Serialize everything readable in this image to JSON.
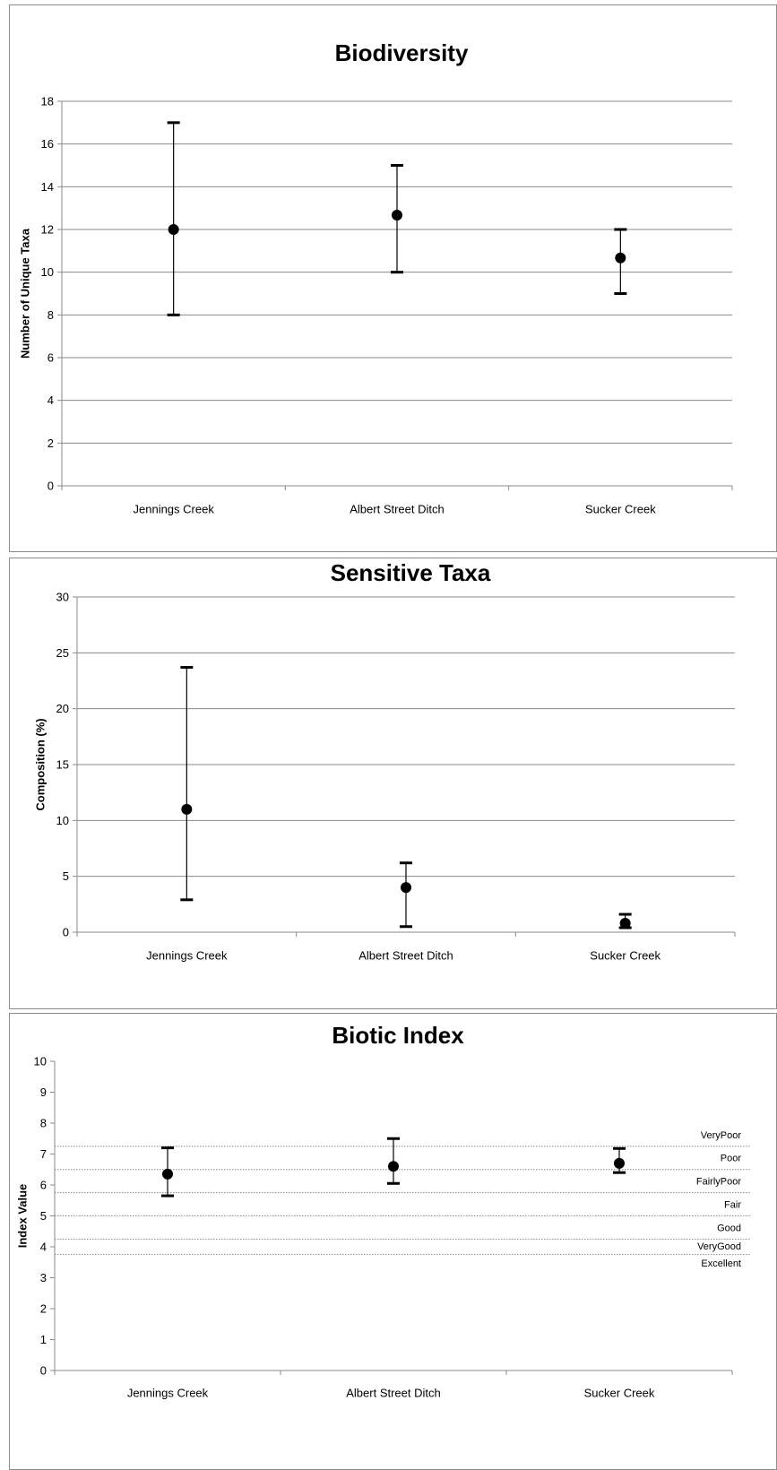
{
  "chart_data": [
    {
      "type": "scatter",
      "title": "Biodiversity",
      "xlabel": "",
      "ylabel": "Number of Unique Taxa",
      "categories": [
        "Jennings Creek",
        "Albert Street Ditch",
        "Sucker Creek"
      ],
      "series": [
        {
          "values": [
            12,
            12.67,
            10.67
          ],
          "error_high": [
            17,
            15,
            12
          ],
          "error_low": [
            8,
            10,
            9
          ]
        }
      ],
      "ylim": [
        0,
        18
      ],
      "yticks": [
        0,
        2,
        4,
        6,
        8,
        10,
        12,
        14,
        16,
        18
      ],
      "grid": true
    },
    {
      "type": "scatter",
      "title": "Sensitive Taxa",
      "xlabel": "",
      "ylabel": "Composition (%)",
      "categories": [
        "Jennings Creek",
        "Albert Street Ditch",
        "Sucker Creek"
      ],
      "series": [
        {
          "values": [
            11,
            4,
            0.8
          ],
          "error_high": [
            23.7,
            6.2,
            1.6
          ],
          "error_low": [
            2.9,
            0.5,
            0.4
          ]
        }
      ],
      "ylim": [
        0,
        30
      ],
      "yticks": [
        0,
        5,
        10,
        15,
        20,
        25,
        30
      ],
      "grid": true
    },
    {
      "type": "scatter",
      "title": "Biotic Index",
      "xlabel": "",
      "ylabel": "Index Value",
      "categories": [
        "Jennings Creek",
        "Albert Street Ditch",
        "Sucker Creek"
      ],
      "series": [
        {
          "values": [
            6.35,
            6.6,
            6.7
          ],
          "error_high": [
            7.2,
            7.5,
            7.18
          ],
          "error_low": [
            5.65,
            6.05,
            6.4
          ]
        }
      ],
      "ylim": [
        0,
        10
      ],
      "yticks": [
        0,
        1,
        2,
        3,
        4,
        5,
        6,
        7,
        8,
        9,
        10
      ],
      "grid": false,
      "thresholds": [
        7.25,
        6.5,
        5.75,
        5.0,
        4.25,
        3.75
      ],
      "bands": [
        {
          "label": "VeryPoor",
          "value": 7.6
        },
        {
          "label": "Poor",
          "value": 6.85
        },
        {
          "label": "FairlyPoor",
          "value": 6.1
        },
        {
          "label": "Fair",
          "value": 5.35
        },
        {
          "label": "Good",
          "value": 4.6
        },
        {
          "label": "VeryGood",
          "value": 4.0
        },
        {
          "label": "Excellent",
          "value": 3.45
        }
      ]
    }
  ]
}
